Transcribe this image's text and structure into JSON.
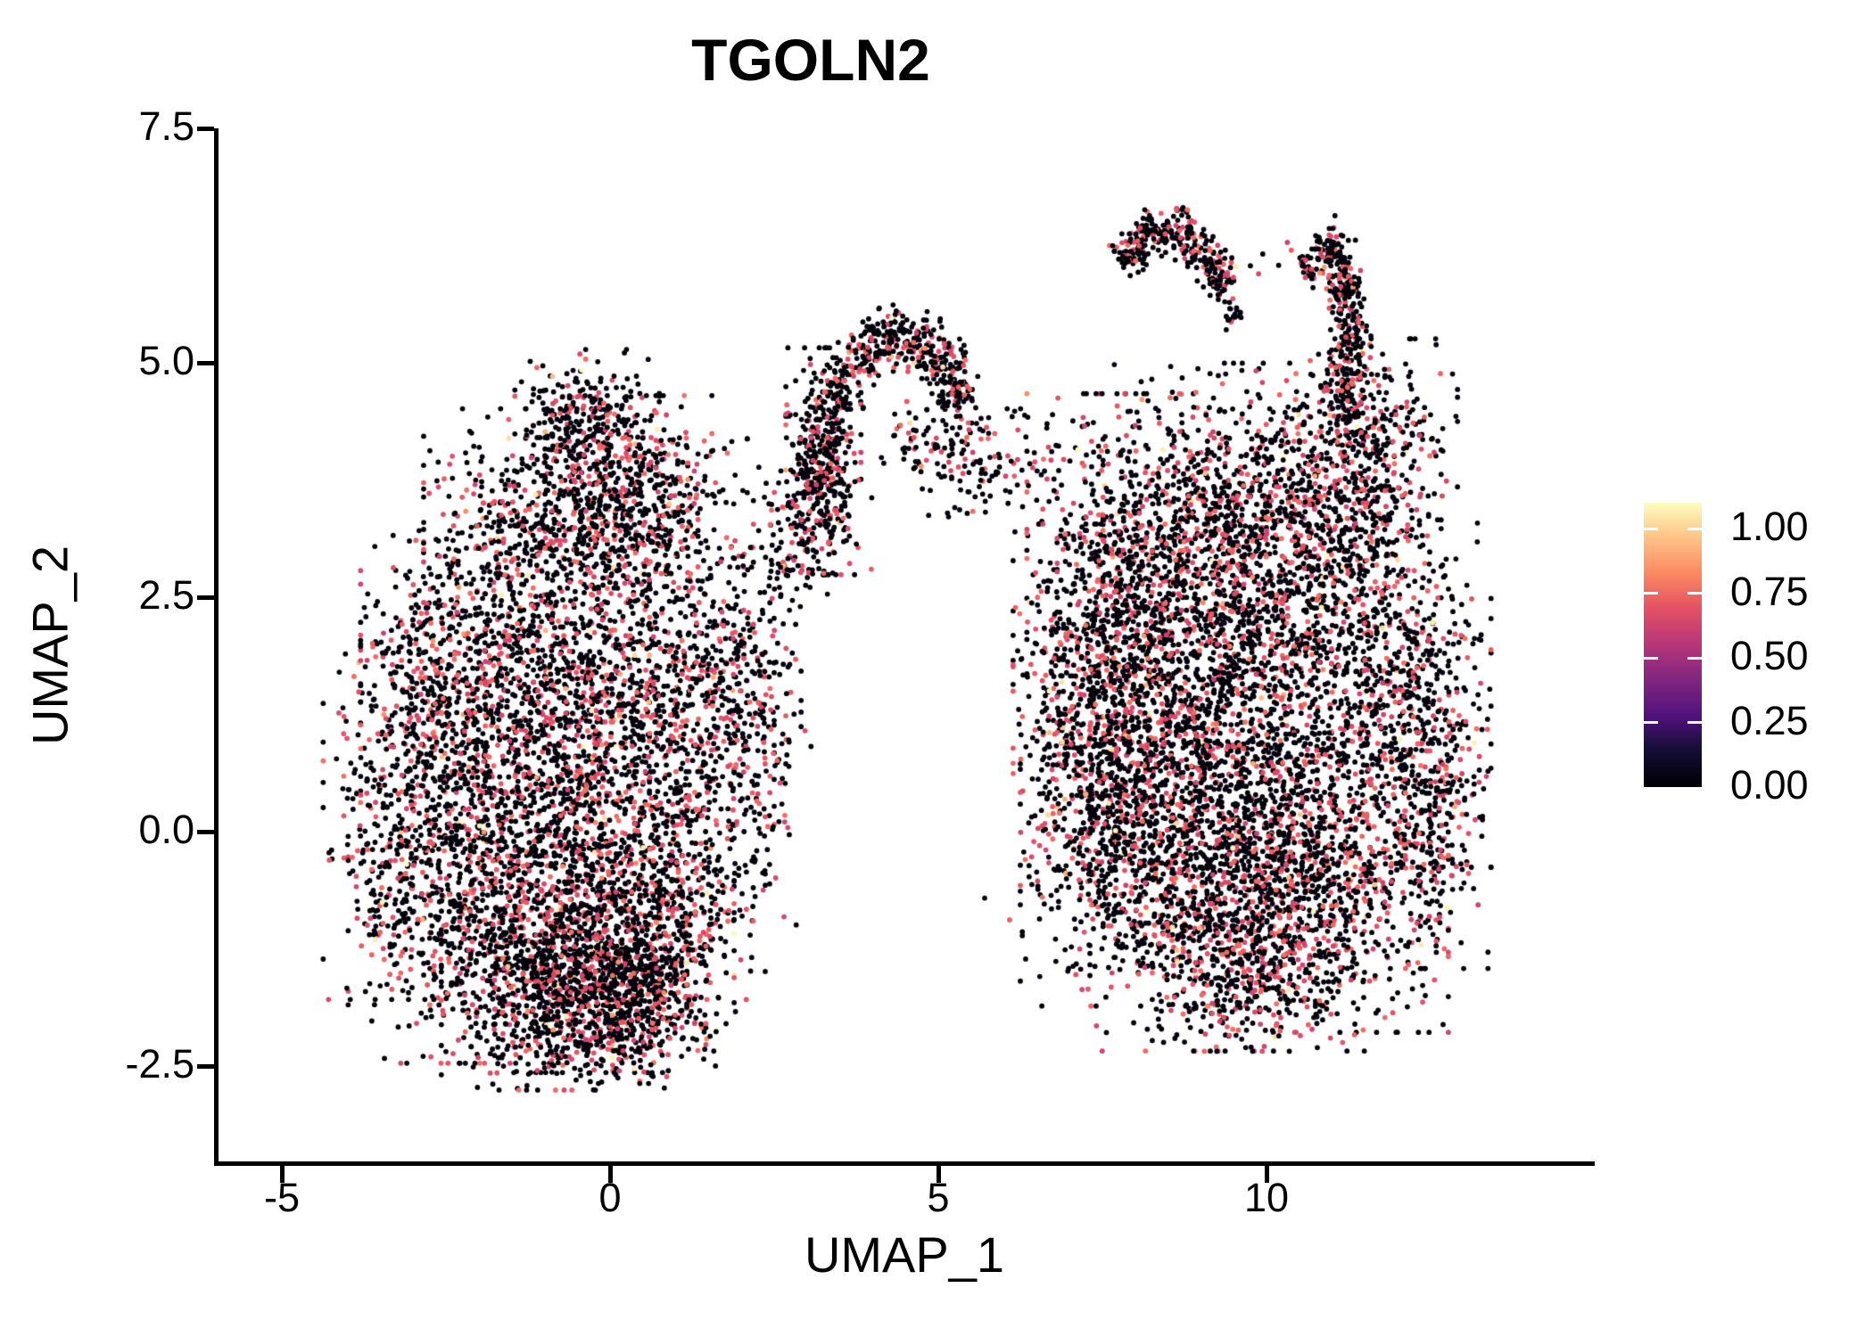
{
  "title": "TGOLN2",
  "axes": {
    "x_label": "UMAP_1",
    "y_label": "UMAP_2",
    "x_ticks": [
      {
        "label": "-5",
        "value": -5
      },
      {
        "label": "0",
        "value": 0
      },
      {
        "label": "5",
        "value": 5
      },
      {
        "label": "10",
        "value": 10
      }
    ],
    "y_ticks": [
      {
        "label": "7.5",
        "value": 7.5
      },
      {
        "label": "5.0",
        "value": 5.0
      },
      {
        "label": "2.5",
        "value": 2.5
      },
      {
        "label": "0.0",
        "value": 0.0
      },
      {
        "label": "-2.5",
        "value": -2.5
      }
    ]
  },
  "legend": {
    "type": "colorbar",
    "position": "right",
    "scale_max": 1.1,
    "ticks": [
      {
        "label": "1.00",
        "value": 1.0
      },
      {
        "label": "0.75",
        "value": 0.75
      },
      {
        "label": "0.50",
        "value": 0.5
      },
      {
        "label": "0.25",
        "value": 0.25
      },
      {
        "label": "0.00",
        "value": 0.0
      }
    ],
    "colormap_name": "magma",
    "colormap_stops": [
      {
        "t": 0.0,
        "color": "#000004"
      },
      {
        "t": 0.13,
        "color": "#140e36"
      },
      {
        "t": 0.25,
        "color": "#51127c"
      },
      {
        "t": 0.38,
        "color": "#822681"
      },
      {
        "t": 0.5,
        "color": "#b63679"
      },
      {
        "t": 0.63,
        "color": "#e65164"
      },
      {
        "t": 0.75,
        "color": "#fb8861"
      },
      {
        "t": 0.88,
        "color": "#fec488"
      },
      {
        "t": 1.0,
        "color": "#fcfdbf"
      }
    ]
  },
  "chart_data": {
    "type": "scatter",
    "title": "TGOLN2",
    "xlabel": "UMAP_1",
    "ylabel": "UMAP_2",
    "xlim": [
      -6.0,
      15.0
    ],
    "ylim": [
      -3.55,
      7.5
    ],
    "x_ticks": [
      -5,
      0,
      5,
      10
    ],
    "y_ticks": [
      7.5,
      5.0,
      2.5,
      0.0,
      -2.5
    ],
    "grid": false,
    "point_radius_px": 2.9,
    "color_scale": {
      "name": "magma",
      "domain": [
        0.0,
        1.1
      ],
      "tick_values": [
        0.0,
        0.25,
        0.5,
        0.75,
        1.0
      ]
    },
    "value_distribution": [
      {
        "name": "black-low-expression",
        "fraction": 0.715,
        "value_range": [
          0.0,
          0.04
        ]
      },
      {
        "name": "pink-mid-expression",
        "fraction": 0.27,
        "value_range": [
          0.56,
          0.7
        ]
      },
      {
        "name": "orange-high-expression",
        "fraction": 0.008,
        "value_range": [
          0.74,
          0.88
        ]
      },
      {
        "name": "yellow-max-expression",
        "fraction": 0.007,
        "value_range": [
          0.92,
          1.0
        ]
      }
    ],
    "clusters": [
      {
        "type": "gauss",
        "cx": -0.35,
        "cy": 4.35,
        "sx": 0.5,
        "sy": 0.36,
        "n": 270
      },
      {
        "type": "gauss",
        "cx": -0.75,
        "cy": 3.3,
        "sx": 0.95,
        "sy": 0.55,
        "n": 650
      },
      {
        "type": "gauss",
        "cx": 0.55,
        "cy": 3.55,
        "sx": 0.7,
        "sy": 0.5,
        "n": 380
      },
      {
        "type": "gauss",
        "cx": -1.6,
        "cy": 1.5,
        "sx": 1.0,
        "sy": 0.8,
        "n": 900
      },
      {
        "type": "gauss",
        "cx": 0.3,
        "cy": 1.4,
        "sx": 1.0,
        "sy": 0.8,
        "n": 800
      },
      {
        "type": "gauss",
        "cx": 1.7,
        "cy": 1.6,
        "sx": 0.55,
        "sy": 0.65,
        "n": 300
      },
      {
        "type": "gauss",
        "cx": -1.9,
        "cy": -0.6,
        "sx": 0.95,
        "sy": 0.85,
        "n": 900
      },
      {
        "type": "gauss",
        "cx": -0.2,
        "cy": -0.7,
        "sx": 0.95,
        "sy": 0.85,
        "n": 900
      },
      {
        "type": "gauss",
        "cx": 1.0,
        "cy": -0.9,
        "sx": 0.62,
        "sy": 0.7,
        "n": 420
      },
      {
        "type": "gauss",
        "cx": -0.7,
        "cy": -1.7,
        "sx": 0.85,
        "sy": 0.48,
        "n": 800
      },
      {
        "type": "gauss",
        "cx": 0.25,
        "cy": -1.85,
        "sx": 0.55,
        "sy": 0.38,
        "n": 380
      },
      {
        "type": "gauss",
        "cx": -3.05,
        "cy": 0.3,
        "sx": 0.6,
        "sy": 0.95,
        "n": 380
      },
      {
        "type": "gauss",
        "cx": -2.7,
        "cy": 2.0,
        "sx": 0.5,
        "sy": 0.55,
        "n": 150
      },
      {
        "type": "gauss",
        "cx": 2.3,
        "cy": 0.6,
        "sx": 0.35,
        "sy": 0.8,
        "n": 110
      },
      {
        "type": "gauss",
        "cx": 3.25,
        "cy": 3.95,
        "sx": 0.26,
        "sy": 0.55,
        "n": 430
      },
      {
        "type": "gauss",
        "cx": 2.8,
        "cy": 3.2,
        "sx": 0.28,
        "sy": 0.45,
        "n": 110
      },
      {
        "type": "arc",
        "cx": 4.42,
        "cy": 4.32,
        "r": 0.95,
        "a0": 15,
        "a1": 168,
        "w": 0.16,
        "n": 420
      },
      {
        "type": "gauss",
        "cx": 5.05,
        "cy": 4.18,
        "sx": 0.4,
        "sy": 0.26,
        "n": 100
      },
      {
        "type": "gauss",
        "cx": 5.95,
        "cy": 3.85,
        "sx": 0.5,
        "sy": 0.3,
        "n": 80
      },
      {
        "type": "gauss",
        "cx": 8.0,
        "cy": 2.8,
        "sx": 0.75,
        "sy": 0.85,
        "n": 700
      },
      {
        "type": "gauss",
        "cx": 9.6,
        "cy": 3.5,
        "sx": 0.95,
        "sy": 0.68,
        "n": 700
      },
      {
        "type": "gauss",
        "cx": 10.9,
        "cy": 3.3,
        "sx": 0.8,
        "sy": 0.72,
        "n": 520
      },
      {
        "type": "gauss",
        "cx": 7.35,
        "cy": 1.3,
        "sx": 0.55,
        "sy": 0.9,
        "n": 600
      },
      {
        "type": "gauss",
        "cx": 8.9,
        "cy": 1.6,
        "sx": 0.95,
        "sy": 0.9,
        "n": 700
      },
      {
        "type": "gauss",
        "cx": 10.5,
        "cy": 1.7,
        "sx": 0.9,
        "sy": 0.85,
        "n": 600
      },
      {
        "type": "gauss",
        "cx": 12.1,
        "cy": 1.6,
        "sx": 0.6,
        "sy": 0.9,
        "n": 450
      },
      {
        "type": "gauss",
        "cx": 12.45,
        "cy": 0.3,
        "sx": 0.42,
        "sy": 0.8,
        "n": 330
      },
      {
        "type": "gauss",
        "cx": 7.9,
        "cy": -0.1,
        "sx": 0.75,
        "sy": 0.8,
        "n": 700
      },
      {
        "type": "gauss",
        "cx": 9.4,
        "cy": -0.8,
        "sx": 0.95,
        "sy": 0.7,
        "n": 800
      },
      {
        "type": "gauss",
        "cx": 10.9,
        "cy": -0.6,
        "sx": 0.85,
        "sy": 0.7,
        "n": 600
      },
      {
        "type": "gauss",
        "cx": 9.9,
        "cy": 0.6,
        "sx": 1.0,
        "sy": 0.8,
        "n": 500
      },
      {
        "type": "gauss",
        "cx": 9.8,
        "cy": -1.55,
        "sx": 0.7,
        "sy": 0.36,
        "n": 260
      },
      {
        "type": "gauss",
        "cx": 11.7,
        "cy": 4.2,
        "sx": 0.55,
        "sy": 0.48,
        "n": 260
      },
      {
        "type": "path",
        "bezier": true,
        "pts": [
          [
            11.15,
            4.45
          ],
          [
            11.5,
            5.4
          ],
          [
            10.95,
            6.3
          ]
        ],
        "w": 0.14,
        "n": 320
      },
      {
        "type": "path",
        "pts": [
          [
            10.55,
            5.95
          ],
          [
            10.9,
            6.2
          ],
          [
            11.1,
            6.28
          ]
        ],
        "w": 0.1,
        "n": 60
      },
      {
        "type": "path",
        "pts": [
          [
            7.78,
            6.05
          ],
          [
            8.02,
            6.3
          ],
          [
            8.45,
            6.42
          ],
          [
            8.9,
            6.33
          ],
          [
            9.15,
            6.08
          ],
          [
            9.38,
            5.75
          ]
        ],
        "w": 0.13,
        "n": 300
      },
      {
        "type": "path",
        "pts": [
          [
            9.42,
            5.68
          ],
          [
            9.55,
            5.42
          ]
        ],
        "w": 0.08,
        "n": 22
      }
    ],
    "sparse_singles": [
      [
        9.7,
        6.05
      ],
      [
        9.92,
        6.18
      ],
      [
        10.15,
        6.0
      ],
      [
        10.38,
        6.22
      ],
      [
        10.6,
        6.08
      ],
      [
        10.3,
        6.3
      ],
      [
        9.85,
        5.9
      ],
      [
        5.75,
        -0.72
      ],
      [
        6.02,
        -0.92
      ],
      [
        6.28,
        -1.08
      ],
      [
        5.5,
        3.92
      ],
      [
        5.88,
        4.2
      ],
      [
        6.2,
        3.7
      ],
      [
        6.45,
        4.05
      ],
      [
        4.2,
        3.95
      ],
      [
        4.62,
        3.88
      ],
      [
        4.0,
        3.62
      ],
      [
        2.3,
        2.55
      ],
      [
        5.12,
        3.42
      ],
      [
        6.62,
        4.35
      ],
      [
        3.92,
        2.85
      ],
      [
        6.15,
        4.55
      ],
      [
        5.3,
        4.62
      ],
      [
        5.65,
        4.4
      ],
      [
        4.85,
        3.35
      ],
      [
        2.6,
        1.7
      ],
      [
        2.75,
        2.4
      ],
      [
        -3.55,
        2.45
      ],
      [
        -3.3,
        3.1
      ]
    ]
  }
}
